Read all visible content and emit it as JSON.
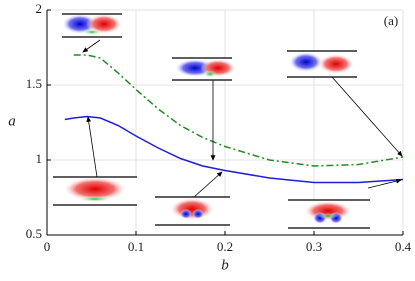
{
  "chart_data": {
    "type": "line",
    "annotation": "(a)",
    "x_label": "b",
    "y_label": "a",
    "x": [
      0.02,
      0.03,
      0.045,
      0.06,
      0.08,
      0.1,
      0.125,
      0.15,
      0.175,
      0.2,
      0.25,
      0.3,
      0.35,
      0.4
    ],
    "series": [
      {
        "color": "#1f1fd6",
        "dash": false,
        "values": [
          1.27,
          1.28,
          1.29,
          1.28,
          1.23,
          1.16,
          1.08,
          1.01,
          0.96,
          0.93,
          0.88,
          0.85,
          0.85,
          0.87
        ]
      },
      {
        "color": "#228b22",
        "dash": true,
        "values": [
          null,
          1.7,
          1.7,
          1.68,
          1.58,
          1.47,
          1.34,
          1.23,
          1.15,
          1.09,
          1.0,
          0.96,
          0.97,
          1.02
        ]
      }
    ],
    "xlim": [
      0,
      0.4
    ],
    "xticks": [
      0,
      0.1,
      0.2,
      0.3,
      0.4
    ],
    "ylim": [
      0.5,
      2
    ],
    "yticks": [
      0.5,
      1,
      1.5,
      2
    ],
    "grid": true
  }
}
